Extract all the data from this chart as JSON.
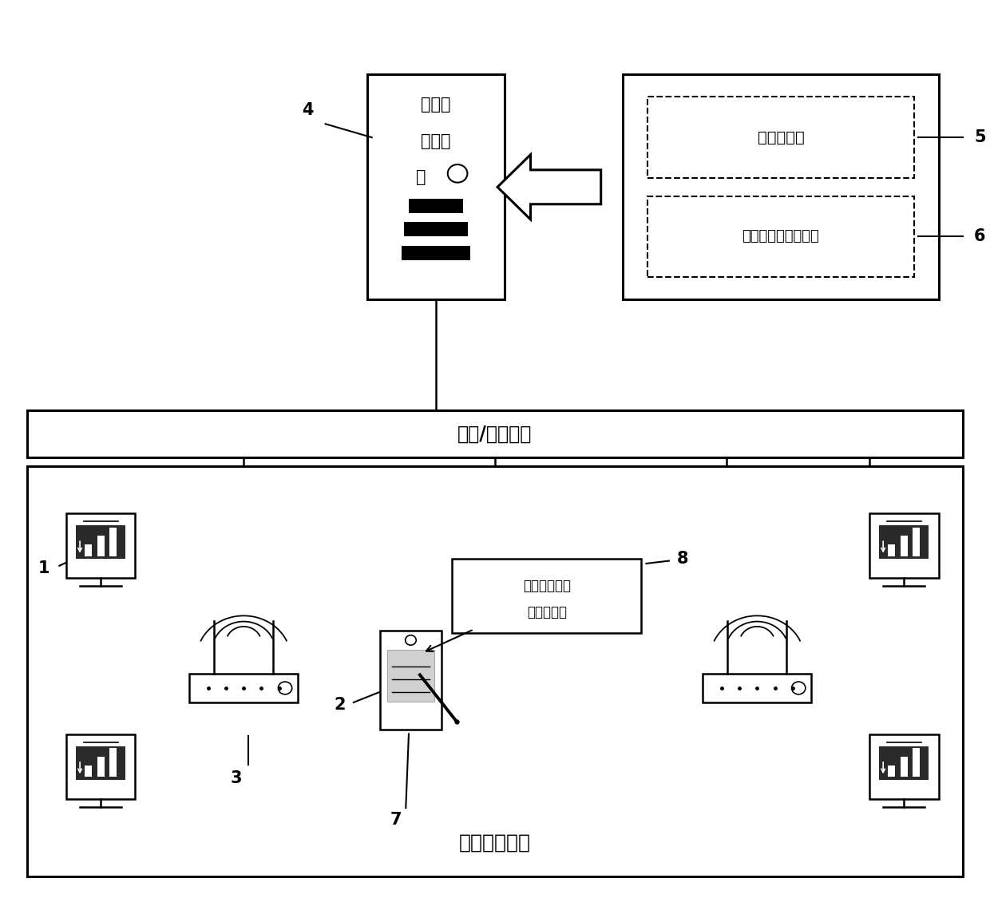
{
  "bg_color": "#ffffff",
  "network_label": "有线/无线网络",
  "server_label_lines": [
    "定位推",
    "送服务",
    "器"
  ],
  "server_num": "4",
  "db_label1": "定位信息库",
  "db_label2": "三维作业指导信息库",
  "db_num1": "5",
  "db_num2": "6",
  "workshop_label": "船舶生产车间",
  "pda_callout": [
    "三维作业指导",
    "书推送软件"
  ],
  "pda_callout_num": "8",
  "monitor_num": "1",
  "pda_num": "2",
  "router_num": "3",
  "pda_bottom_num": "7",
  "lw": 1.8,
  "lw_thick": 2.2
}
